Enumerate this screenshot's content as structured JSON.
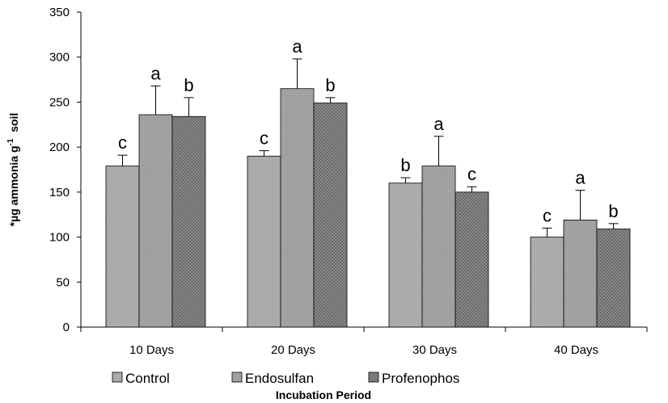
{
  "chart_data": {
    "type": "bar",
    "title": "",
    "xlabel": "Incubation Period",
    "ylabel": {
      "prefix": "*µg ammonia g",
      "superscript": "-1",
      "suffix": "  soil"
    },
    "ylim": [
      0,
      350
    ],
    "yticks": [
      0,
      50,
      100,
      150,
      200,
      250,
      300,
      350
    ],
    "categories": [
      "10 Days",
      "20 Days",
      "30 Days",
      "40 Days"
    ],
    "series": [
      {
        "name": "Control",
        "values": [
          179,
          190,
          160,
          100
        ],
        "errors": [
          12,
          6,
          6,
          10
        ],
        "letters": [
          "c",
          "c",
          "b",
          "c"
        ],
        "color": "#a8a8a8"
      },
      {
        "name": "Endosulfan",
        "values": [
          236,
          265,
          179,
          119
        ],
        "errors": [
          32,
          33,
          33,
          33
        ],
        "letters": [
          "a",
          "a",
          "a",
          "a"
        ],
        "color": "#9d9d9d"
      },
      {
        "name": "Profenophos",
        "values": [
          234,
          249,
          150,
          109
        ],
        "errors": [
          21,
          6,
          6,
          6
        ],
        "letters": [
          "b",
          "b",
          "c",
          "b"
        ],
        "color": "#808080"
      }
    ],
    "grid": false,
    "legend_position": "bottom",
    "error_bars": true
  }
}
